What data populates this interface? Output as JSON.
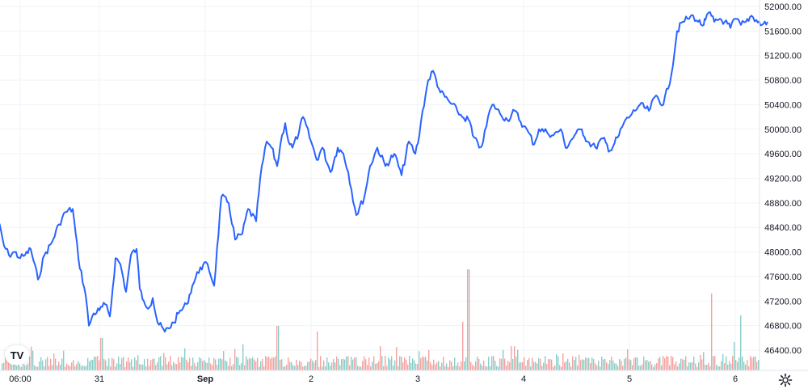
{
  "logo_text": "TV",
  "settings_icon": "gear-icon",
  "colors": {
    "line": "#2962ff",
    "volume_up": "#26a69a",
    "volume_down": "#ef5350",
    "grid": "#f0f3fa",
    "text": "#131722"
  },
  "chart_data": {
    "type": "line",
    "ylim": [
      46200,
      52000
    ],
    "y_ticks": [
      "52000.00",
      "51600.00",
      "51200.00",
      "50800.00",
      "50400.00",
      "50000.00",
      "49600.00",
      "49200.00",
      "48800.00",
      "48400.00",
      "48000.00",
      "47600.00",
      "47200.00",
      "46800.00",
      "46400.00"
    ],
    "x_ticks": [
      {
        "label": "06:00",
        "t": 0.25,
        "bold": false
      },
      {
        "label": "31",
        "t": 1.0,
        "bold": false
      },
      {
        "label": "Sep",
        "t": 2.0,
        "bold": true
      },
      {
        "label": "2",
        "t": 3.0,
        "bold": false
      },
      {
        "label": "3",
        "t": 4.0,
        "bold": false
      },
      {
        "label": "4",
        "t": 5.0,
        "bold": false
      },
      {
        "label": "5",
        "t": 6.0,
        "bold": false
      },
      {
        "label": "6",
        "t": 7.0,
        "bold": false
      }
    ],
    "series": [
      {
        "x": [
          0.0,
          0.05,
          0.1,
          0.15,
          0.2,
          0.25,
          0.3,
          0.35,
          0.42,
          0.48,
          0.55,
          0.62,
          0.68,
          0.75,
          0.8,
          0.87,
          0.9,
          0.95,
          1.0,
          1.05,
          1.1,
          1.15,
          1.2,
          1.25,
          1.3,
          1.35,
          1.38,
          1.42,
          1.47,
          1.5,
          1.55,
          1.62,
          1.7,
          1.75,
          1.82,
          1.88,
          1.95,
          2.02,
          2.08,
          2.15,
          2.22,
          2.28,
          2.35,
          2.4,
          2.48,
          2.52,
          2.58,
          2.62,
          2.68,
          2.72,
          2.75,
          2.78,
          2.82,
          2.88,
          2.92,
          3.0,
          3.05,
          3.1,
          3.18,
          3.25,
          3.3,
          3.35,
          3.42,
          3.5,
          3.55,
          3.62,
          3.7,
          3.78,
          3.85,
          3.92,
          3.98,
          4.02,
          4.05,
          4.1,
          4.15,
          4.22,
          4.3,
          4.38,
          4.42,
          4.48,
          4.5,
          4.52,
          4.58,
          4.62,
          4.68,
          4.72,
          4.78,
          4.85,
          4.92,
          5.0,
          5.05,
          5.1,
          5.15,
          5.22,
          5.28,
          5.35,
          5.4,
          5.48,
          5.55,
          5.6,
          5.68,
          5.75,
          5.82,
          5.9,
          5.95,
          6.02,
          6.1,
          6.18,
          6.25,
          6.32,
          6.4,
          6.45,
          6.5,
          6.55,
          6.6,
          6.65,
          6.7,
          6.72,
          6.75,
          6.8,
          6.85,
          6.9,
          6.95,
          7.0,
          7.05,
          7.1,
          7.15,
          7.2,
          7.25,
          7.3
        ],
        "values": [
          48800,
          48500,
          48100,
          47950,
          48000,
          47900,
          47950,
          48050,
          47550,
          47950,
          48150,
          48450,
          48650,
          48700,
          47900,
          47300,
          46800,
          47000,
          47050,
          47150,
          46950,
          47900,
          47800,
          47350,
          47950,
          48050,
          47400,
          47200,
          47100,
          47250,
          46850,
          46700,
          46850,
          47000,
          47150,
          47450,
          47750,
          47800,
          47450,
          48900,
          48800,
          48200,
          48300,
          48700,
          48500,
          49200,
          49800,
          49700,
          49400,
          49900,
          50100,
          49800,
          49700,
          49950,
          50200,
          49800,
          49500,
          49700,
          49300,
          49700,
          49600,
          49300,
          48600,
          48900,
          49400,
          49700,
          49400,
          49600,
          49250,
          49800,
          49600,
          49900,
          50300,
          50800,
          50950,
          50600,
          50450,
          50300,
          50200,
          50150,
          50100,
          49900,
          49700,
          49800,
          50300,
          50400,
          50250,
          50150,
          50300,
          50050,
          49950,
          49750,
          50000,
          49950,
          49900,
          50000,
          49700,
          49900,
          50000,
          49800,
          49700,
          49850,
          49650,
          49900,
          50100,
          50250,
          50400,
          50300,
          50550,
          50400,
          50900,
          51600,
          51750,
          51800,
          51850,
          51750,
          51700,
          51780,
          51900,
          51750,
          51800,
          51750,
          51650,
          51800,
          51700,
          51750,
          51850,
          51780,
          51700,
          51750
        ]
      }
    ]
  }
}
